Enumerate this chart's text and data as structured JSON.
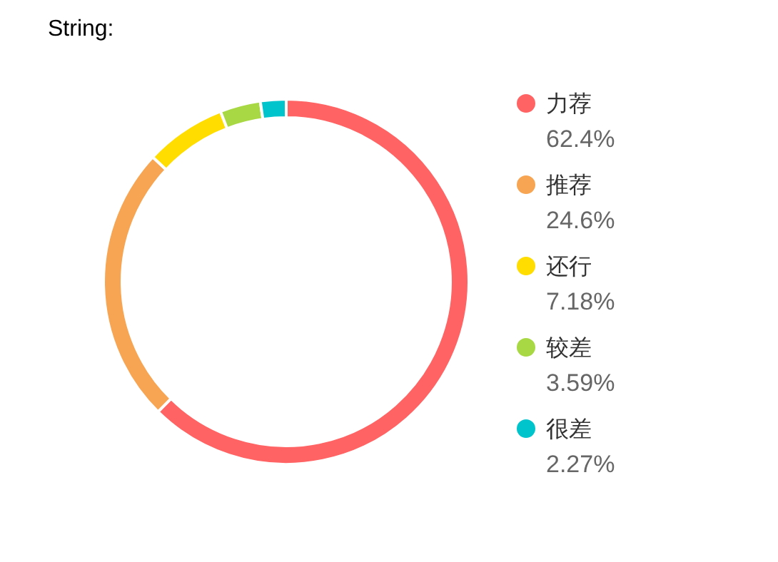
{
  "chart_data": {
    "type": "donut",
    "title": "String:",
    "categories": [
      "力荐",
      "推荐",
      "还行",
      "较差",
      "很差"
    ],
    "values": [
      62.4,
      24.6,
      7.18,
      3.59,
      2.27
    ],
    "colors": [
      "#ff6363",
      "#f7a552",
      "#ffdd00",
      "#a8d944",
      "#00c4cc"
    ],
    "value_labels": [
      "62.4%",
      "24.6%",
      "7.18%",
      "3.59%",
      "2.27%"
    ],
    "legend": "right"
  }
}
